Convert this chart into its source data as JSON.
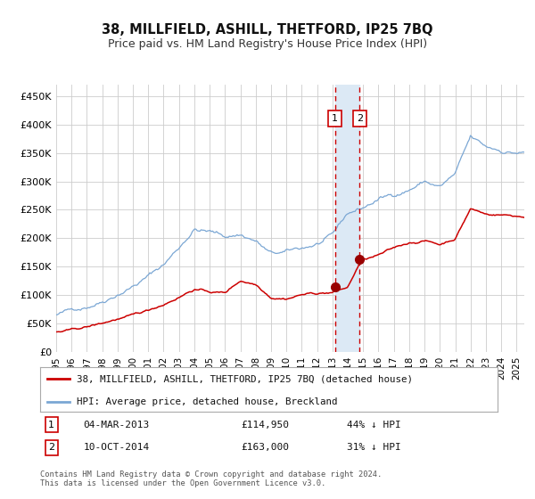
{
  "title": "38, MILLFIELD, ASHILL, THETFORD, IP25 7BQ",
  "subtitle": "Price paid vs. HM Land Registry's House Price Index (HPI)",
  "hpi_color": "#7ba7d4",
  "price_color": "#cc0000",
  "marker_color": "#990000",
  "background_color": "#ffffff",
  "grid_color": "#cccccc",
  "highlight_color": "#dce9f5",
  "dashed_color": "#cc0000",
  "ylabel_ticks": [
    "£0",
    "£50K",
    "£100K",
    "£150K",
    "£200K",
    "£250K",
    "£300K",
    "£350K",
    "£400K",
    "£450K"
  ],
  "ylabel_values": [
    0,
    50000,
    100000,
    150000,
    200000,
    250000,
    300000,
    350000,
    400000,
    450000
  ],
  "ylim": [
    0,
    470000
  ],
  "xlim_start": 1995.0,
  "xlim_end": 2025.5,
  "sale1_date": 2013.17,
  "sale1_price": 114950,
  "sale1_label": "1",
  "sale2_date": 2014.78,
  "sale2_price": 163000,
  "sale2_label": "2",
  "legend_line1": "38, MILLFIELD, ASHILL, THETFORD, IP25 7BQ (detached house)",
  "legend_line2": "HPI: Average price, detached house, Breckland",
  "table_row1": [
    "1",
    "04-MAR-2013",
    "£114,950",
    "44% ↓ HPI"
  ],
  "table_row2": [
    "2",
    "10-OCT-2014",
    "£163,000",
    "31% ↓ HPI"
  ],
  "footer": "Contains HM Land Registry data © Crown copyright and database right 2024.\nThis data is licensed under the Open Government Licence v3.0.",
  "xtick_years": [
    1995,
    1996,
    1997,
    1998,
    1999,
    2000,
    2001,
    2002,
    2003,
    2004,
    2005,
    2006,
    2007,
    2008,
    2009,
    2010,
    2011,
    2012,
    2013,
    2014,
    2015,
    2016,
    2017,
    2018,
    2019,
    2020,
    2021,
    2022,
    2023,
    2024,
    2025
  ],
  "hpi_key_times": [
    1995.0,
    1996.0,
    1997.0,
    1998.0,
    1999.0,
    2000.0,
    2001.0,
    2002.0,
    2003.0,
    2004.0,
    2005.0,
    2006.0,
    2007.0,
    2008.0,
    2009.0,
    2010.0,
    2011.0,
    2012.0,
    2013.0,
    2014.0,
    2015.0,
    2016.0,
    2017.0,
    2018.0,
    2019.0,
    2020.0,
    2021.0,
    2022.0,
    2023.0,
    2024.0,
    2025.5
  ],
  "hpi_key_prices": [
    65000,
    72000,
    82000,
    95000,
    112000,
    128000,
    145000,
    165000,
    195000,
    230000,
    225000,
    215000,
    220000,
    210000,
    185000,
    185000,
    190000,
    198000,
    208000,
    245000,
    255000,
    270000,
    278000,
    290000,
    305000,
    295000,
    315000,
    375000,
    355000,
    350000,
    348000
  ],
  "price_key_times": [
    1995.0,
    1996.0,
    1997.0,
    1998.0,
    1999.0,
    2000.0,
    2001.0,
    2002.0,
    2003.0,
    2004.0,
    2005.0,
    2006.0,
    2007.0,
    2008.0,
    2009.0,
    2010.0,
    2011.0,
    2012.0,
    2013.0,
    2013.17,
    2013.5,
    2014.0,
    2014.78,
    2015.0,
    2016.0,
    2017.0,
    2018.0,
    2019.0,
    2020.0,
    2021.0,
    2022.0,
    2023.0,
    2024.0,
    2025.5
  ],
  "price_key_prices": [
    35000,
    37000,
    42000,
    48000,
    56000,
    60000,
    68000,
    80000,
    95000,
    110000,
    105000,
    103000,
    125000,
    120000,
    100000,
    100000,
    108000,
    110000,
    112000,
    114950,
    116000,
    120000,
    163000,
    168000,
    175000,
    185000,
    195000,
    200000,
    193000,
    205000,
    258000,
    248000,
    248000,
    245000
  ]
}
